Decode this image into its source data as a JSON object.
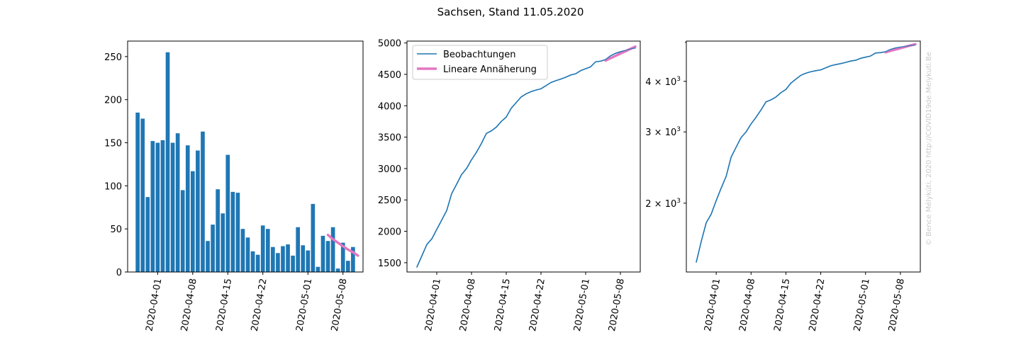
{
  "figure": {
    "suptitle": "Sachsen, Stand 11.05.2020",
    "watermark": "© Bence Mélykúti, 2020  http://COVID19de.Melykuti.Be"
  },
  "colors": {
    "observed": "#1f77b4",
    "fit": "#e377c2",
    "axis": "#000000",
    "watermark": "#c8c8c8"
  },
  "chart_data": [
    {
      "type": "bar",
      "title": "",
      "xlabel": "",
      "ylabel": "",
      "x": [
        "2020-03-28",
        "2020-03-29",
        "2020-03-30",
        "2020-03-31",
        "2020-04-01",
        "2020-04-02",
        "2020-04-03",
        "2020-04-04",
        "2020-04-05",
        "2020-04-06",
        "2020-04-07",
        "2020-04-08",
        "2020-04-09",
        "2020-04-10",
        "2020-04-11",
        "2020-04-12",
        "2020-04-13",
        "2020-04-14",
        "2020-04-15",
        "2020-04-16",
        "2020-04-17",
        "2020-04-18",
        "2020-04-19",
        "2020-04-20",
        "2020-04-21",
        "2020-04-22",
        "2020-04-23",
        "2020-04-24",
        "2020-04-25",
        "2020-04-26",
        "2020-04-27",
        "2020-04-28",
        "2020-04-29",
        "2020-04-30",
        "2020-05-01",
        "2020-05-02",
        "2020-05-03",
        "2020-05-04",
        "2020-05-05",
        "2020-05-06",
        "2020-05-07",
        "2020-05-08",
        "2020-05-09",
        "2020-05-10",
        "2020-05-11"
      ],
      "values": [
        185,
        178,
        87,
        152,
        150,
        153,
        255,
        150,
        161,
        95,
        147,
        117,
        141,
        163,
        36,
        55,
        96,
        68,
        136,
        93,
        92,
        50,
        40,
        24,
        20,
        54,
        50,
        29,
        22,
        30,
        32,
        19,
        52,
        31,
        25,
        79,
        6,
        42,
        36,
        52,
        4,
        34,
        13,
        29,
        0
      ],
      "fit_series": {
        "x": [
          "2020-05-05",
          "2020-05-06",
          "2020-05-07",
          "2020-05-08",
          "2020-05-09",
          "2020-05-10",
          "2020-05-11"
        ],
        "values": [
          43,
          38,
          34,
          30,
          26,
          23,
          19
        ]
      },
      "x_ticks": [
        "2020-04-01",
        "2020-04-08",
        "2020-04-15",
        "2020-04-22",
        "2020-05-01",
        "2020-05-08"
      ],
      "y_ticks": [
        0,
        50,
        100,
        150,
        200,
        250
      ],
      "ylim": [
        0,
        268
      ],
      "xlim": [
        "2020-03-26",
        "2020-05-12"
      ],
      "grid": false
    },
    {
      "type": "line",
      "title": "",
      "xlabel": "",
      "ylabel": "",
      "legend": {
        "placement": "top-left"
      },
      "series": [
        {
          "name": "Beobachtungen",
          "x": [
            "2020-03-28",
            "2020-03-29",
            "2020-03-30",
            "2020-03-31",
            "2020-04-01",
            "2020-04-02",
            "2020-04-03",
            "2020-04-04",
            "2020-04-05",
            "2020-04-06",
            "2020-04-07",
            "2020-04-08",
            "2020-04-09",
            "2020-04-10",
            "2020-04-11",
            "2020-04-12",
            "2020-04-13",
            "2020-04-14",
            "2020-04-15",
            "2020-04-16",
            "2020-04-17",
            "2020-04-18",
            "2020-04-19",
            "2020-04-20",
            "2020-04-21",
            "2020-04-22",
            "2020-04-23",
            "2020-04-24",
            "2020-04-25",
            "2020-04-26",
            "2020-04-27",
            "2020-04-28",
            "2020-04-29",
            "2020-04-30",
            "2020-05-01",
            "2020-05-02",
            "2020-05-03",
            "2020-05-04",
            "2020-05-05",
            "2020-05-06",
            "2020-05-07",
            "2020-05-08",
            "2020-05-09",
            "2020-05-10",
            "2020-05-11"
          ],
          "values": [
            1430,
            1610,
            1790,
            1880,
            2030,
            2180,
            2330,
            2600,
            2750,
            2905,
            3000,
            3140,
            3260,
            3400,
            3560,
            3600,
            3660,
            3750,
            3820,
            3960,
            4050,
            4140,
            4190,
            4225,
            4250,
            4270,
            4320,
            4370,
            4400,
            4425,
            4455,
            4490,
            4510,
            4560,
            4590,
            4620,
            4700,
            4710,
            4735,
            4795,
            4835,
            4860,
            4880,
            4905,
            4920
          ]
        },
        {
          "name": "Lineare Annäherung",
          "x": [
            "2020-05-05",
            "2020-05-06",
            "2020-05-07",
            "2020-05-08",
            "2020-05-09",
            "2020-05-10",
            "2020-05-11"
          ],
          "values": [
            4720,
            4757,
            4794,
            4831,
            4868,
            4905,
            4942
          ]
        }
      ],
      "x_ticks": [
        "2020-04-01",
        "2020-04-08",
        "2020-04-15",
        "2020-04-22",
        "2020-05-01",
        "2020-05-08"
      ],
      "y_ticks": [
        1500,
        2000,
        2500,
        3000,
        3500,
        4000,
        4500,
        5000
      ],
      "ylim": [
        1352,
        5030
      ],
      "xlim": [
        "2020-03-26",
        "2020-05-12"
      ],
      "grid": false
    },
    {
      "type": "line",
      "title": "",
      "xlabel": "",
      "ylabel": "",
      "y_scale": "log",
      "series": [
        {
          "name": "Beobachtungen",
          "x": [
            "2020-03-28",
            "2020-03-29",
            "2020-03-30",
            "2020-03-31",
            "2020-04-01",
            "2020-04-02",
            "2020-04-03",
            "2020-04-04",
            "2020-04-05",
            "2020-04-06",
            "2020-04-07",
            "2020-04-08",
            "2020-04-09",
            "2020-04-10",
            "2020-04-11",
            "2020-04-12",
            "2020-04-13",
            "2020-04-14",
            "2020-04-15",
            "2020-04-16",
            "2020-04-17",
            "2020-04-18",
            "2020-04-19",
            "2020-04-20",
            "2020-04-21",
            "2020-04-22",
            "2020-04-23",
            "2020-04-24",
            "2020-04-25",
            "2020-04-26",
            "2020-04-27",
            "2020-04-28",
            "2020-04-29",
            "2020-04-30",
            "2020-05-01",
            "2020-05-02",
            "2020-05-03",
            "2020-05-04",
            "2020-05-05",
            "2020-05-06",
            "2020-05-07",
            "2020-05-08",
            "2020-05-09",
            "2020-05-10",
            "2020-05-11"
          ],
          "values": [
            1430,
            1610,
            1790,
            1880,
            2030,
            2180,
            2330,
            2600,
            2750,
            2905,
            3000,
            3140,
            3260,
            3400,
            3560,
            3600,
            3660,
            3750,
            3820,
            3960,
            4050,
            4140,
            4190,
            4225,
            4250,
            4270,
            4320,
            4370,
            4400,
            4425,
            4455,
            4490,
            4510,
            4560,
            4590,
            4620,
            4700,
            4710,
            4735,
            4795,
            4835,
            4860,
            4880,
            4905,
            4920
          ]
        },
        {
          "name": "Lineare Annäherung",
          "x": [
            "2020-05-05",
            "2020-05-06",
            "2020-05-07",
            "2020-05-08",
            "2020-05-09",
            "2020-05-10",
            "2020-05-11"
          ],
          "values": [
            4720,
            4757,
            4794,
            4831,
            4868,
            4905,
            4942
          ]
        }
      ],
      "x_ticks": [
        "2020-04-01",
        "2020-04-08",
        "2020-04-15",
        "2020-04-22",
        "2020-05-01",
        "2020-05-08"
      ],
      "y_ticks": [
        2000,
        3000,
        4000
      ],
      "y_tick_labels": [
        {
          "mantissa": "2",
          "base": "10",
          "exp": "3"
        },
        {
          "mantissa": "3",
          "base": "10",
          "exp": "3"
        },
        {
          "mantissa": "4",
          "base": "10",
          "exp": "3"
        }
      ],
      "ylim": [
        1352,
        5030
      ],
      "xlim": [
        "2020-03-26",
        "2020-05-12"
      ],
      "grid": false
    }
  ]
}
